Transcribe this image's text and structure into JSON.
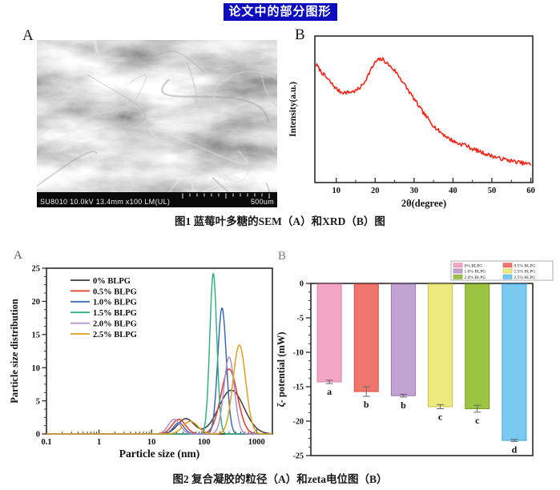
{
  "page_title": "论文中的部分图形",
  "figure1": {
    "panel_a_label": "A",
    "panel_b_label": "B",
    "sem": {
      "info_text": "SU8010 10.0kV 13.4mm x100 LM(UL)",
      "scale_text": "500um"
    },
    "caption": "图1 蓝莓叶多糖的SEM（A）和XRD（B）图"
  },
  "figure2": {
    "panel_a_label": "A",
    "panel_b_label": "B",
    "caption": "图2 复合凝胶的粒径（A）和zeta电位图（B）"
  },
  "chart_data": [
    {
      "id": "xrd",
      "type": "line",
      "xlabel": "2θ(degree)",
      "ylabel": "Intensity(a.u.)",
      "xlim": [
        4.5,
        60.5
      ],
      "xticks": [
        10,
        20,
        30,
        40,
        50,
        60
      ],
      "xticks_minor": [
        15,
        25,
        35,
        45,
        55
      ],
      "line_color": "#f42619",
      "noise": 0.013,
      "points": [
        [
          5,
          0.8
        ],
        [
          6,
          0.76
        ],
        [
          7,
          0.73
        ],
        [
          8,
          0.7
        ],
        [
          9,
          0.67
        ],
        [
          10,
          0.64
        ],
        [
          11,
          0.62
        ],
        [
          12,
          0.615
        ],
        [
          13,
          0.615
        ],
        [
          14,
          0.62
        ],
        [
          15,
          0.625
        ],
        [
          16,
          0.645
        ],
        [
          17,
          0.675
        ],
        [
          18,
          0.725
        ],
        [
          19,
          0.775
        ],
        [
          20,
          0.82
        ],
        [
          21,
          0.84
        ],
        [
          22,
          0.84
        ],
        [
          23,
          0.815
        ],
        [
          24,
          0.79
        ],
        [
          25,
          0.765
        ],
        [
          26,
          0.73
        ],
        [
          27,
          0.69
        ],
        [
          28,
          0.65
        ],
        [
          29,
          0.61
        ],
        [
          30,
          0.57
        ],
        [
          31,
          0.53
        ],
        [
          32,
          0.49
        ],
        [
          33,
          0.455
        ],
        [
          34,
          0.42
        ],
        [
          35,
          0.39
        ],
        [
          36,
          0.36
        ],
        [
          37,
          0.34
        ],
        [
          38,
          0.32
        ],
        [
          39,
          0.3
        ],
        [
          40,
          0.285
        ],
        [
          41,
          0.27
        ],
        [
          42,
          0.262
        ],
        [
          43,
          0.262
        ],
        [
          44,
          0.243
        ],
        [
          45,
          0.23
        ],
        [
          46,
          0.22
        ],
        [
          47,
          0.21
        ],
        [
          48,
          0.2
        ],
        [
          49,
          0.19
        ],
        [
          50,
          0.182
        ],
        [
          51,
          0.173
        ],
        [
          52,
          0.165
        ],
        [
          53,
          0.16
        ],
        [
          54,
          0.153
        ],
        [
          55,
          0.148
        ],
        [
          56,
          0.142
        ],
        [
          57,
          0.138
        ],
        [
          58,
          0.132
        ],
        [
          59,
          0.128
        ],
        [
          60,
          0.125
        ]
      ]
    },
    {
      "id": "particle-size",
      "type": "line",
      "xscale": "log",
      "xlabel": "Particle size (nm)",
      "ylabel": "Particle size distribution",
      "xlim": [
        0.1,
        2000
      ],
      "xticks": [
        0.1,
        1,
        10,
        100,
        1000
      ],
      "xtick_labels": [
        "0.1",
        "1",
        "10",
        "100",
        "1000"
      ],
      "ylim": [
        0,
        25
      ],
      "yticks": [
        0,
        5,
        10,
        15,
        20,
        25
      ],
      "legend_position": "top-left",
      "series": [
        {
          "name": "0% BLPG",
          "color": "#3c3c3c",
          "peaks": [
            {
              "center": 45,
              "height": 2.3,
              "width": 0.22
            },
            {
              "center": 330,
              "height": 6.6,
              "width": 0.34
            }
          ]
        },
        {
          "name": "0.5% BLPG",
          "color": "#e53a2c",
          "peaks": [
            {
              "center": 33,
              "height": 2.2,
              "width": 0.18
            },
            {
              "center": 300,
              "height": 9.8,
              "width": 0.22
            }
          ]
        },
        {
          "name": "1.0% BLPG",
          "color": "#3c6cb0",
          "peaks": [
            {
              "center": 33,
              "height": 1.7,
              "width": 0.14
            },
            {
              "center": 220,
              "height": 19.0,
              "width": 0.115
            }
          ]
        },
        {
          "name": "1.5% BLPG",
          "color": "#32b47d",
          "peaks": [
            {
              "center": 150,
              "height": 24.2,
              "width": 0.095
            }
          ]
        },
        {
          "name": "2.0% BLPG",
          "color": "#b18fc9",
          "peaks": [
            {
              "center": 27,
              "height": 2.2,
              "width": 0.16
            },
            {
              "center": 300,
              "height": 11.6,
              "width": 0.14
            }
          ]
        },
        {
          "name": "2.5% BLPG",
          "color": "#dda11d",
          "peaks": [
            {
              "center": 55,
              "height": 1.9,
              "width": 0.2
            },
            {
              "center": 470,
              "height": 13.4,
              "width": 0.17
            }
          ]
        }
      ]
    },
    {
      "id": "zeta-potential",
      "type": "bar",
      "ylabel": "ζ- potential (mW)",
      "ylim": [
        -25,
        0
      ],
      "yticks": [
        0,
        -5,
        -10,
        -15,
        -20,
        -25
      ],
      "legend_position": "top-right",
      "categories": [
        "0% BLPG",
        "0.5% BLPG",
        "1.0% BLPG",
        "1.5% BLPG",
        "2.0% BLPG",
        "2.5% BLPG"
      ],
      "values": [
        -14.3,
        -15.7,
        -16.3,
        -17.9,
        -18.2,
        -22.8
      ],
      "errors": [
        0.25,
        0.7,
        0.2,
        0.3,
        0.5,
        0.15
      ],
      "letters": [
        "a",
        "b",
        "b",
        "c",
        "c",
        "d"
      ],
      "colors": [
        "#f4a6c6",
        "#f0766d",
        "#c2a3d2",
        "#ede97f",
        "#9cc442",
        "#79c9f0"
      ],
      "edge_colors": [
        "#dd7fa8",
        "#d44f44",
        "#9a74b4",
        "#c9c24a",
        "#739f27",
        "#43a6da"
      ]
    }
  ]
}
